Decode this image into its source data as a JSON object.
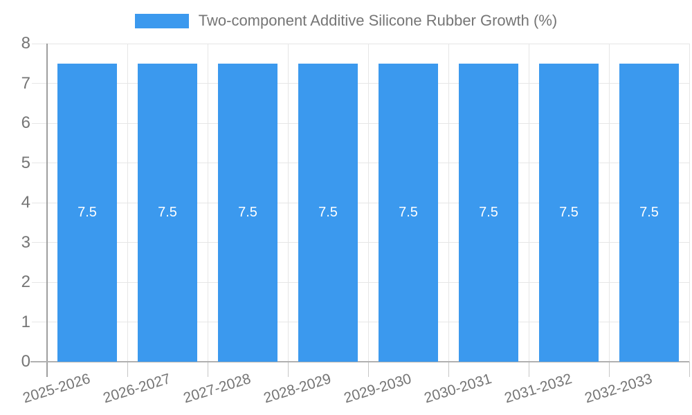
{
  "chart_data": {
    "type": "bar",
    "title": "Two-component Additive Silicone Rubber Growth (%)",
    "legend": {
      "position": "top",
      "entries": [
        {
          "label": "Two-component Additive Silicone Rubber Growth (%)",
          "color": "#3B99EE"
        }
      ]
    },
    "categories": [
      "2025-2026",
      "2026-2027",
      "2027-2028",
      "2028-2029",
      "2029-2030",
      "2030-2031",
      "2031-2032",
      "2032-2033"
    ],
    "series": [
      {
        "name": "Two-component Additive Silicone Rubber Growth (%)",
        "values": [
          7.5,
          7.5,
          7.5,
          7.5,
          7.5,
          7.5,
          7.5,
          7.5
        ]
      }
    ],
    "value_labels": [
      "7.5",
      "7.5",
      "7.5",
      "7.5",
      "7.5",
      "7.5",
      "7.5",
      "7.5"
    ],
    "xlabel": "",
    "ylabel": "",
    "ylim": [
      0,
      8
    ],
    "yticks": [
      "0",
      "1",
      "2",
      "3",
      "4",
      "5",
      "6",
      "7",
      "8"
    ],
    "grid": true,
    "x_tick_rotation_deg": -17,
    "colors": {
      "bar": "#3B99EE",
      "text": "#757575",
      "grid": "#e6e6e6",
      "axis_y": "#9e9e9e",
      "axis_x": "#b0b0b0",
      "minor_tick": "#c6c6c6",
      "value_label": "#ffffff",
      "background": "#ffffff"
    }
  }
}
